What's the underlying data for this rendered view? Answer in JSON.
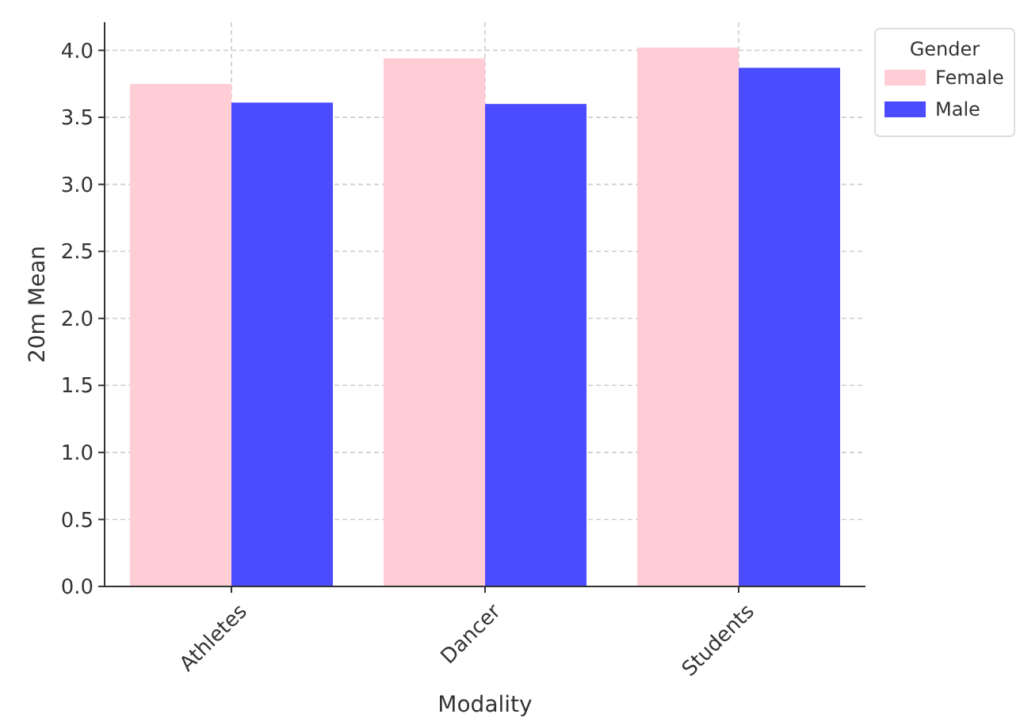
{
  "chart_data": {
    "type": "bar",
    "xlabel": "Modality",
    "ylabel": "20m Mean",
    "legend_title": "Gender",
    "categories": [
      "Athletes",
      "Dancer",
      "Students"
    ],
    "series": [
      {
        "name": "Female",
        "color": "#ffcdd6",
        "values": [
          3.75,
          3.94,
          4.02
        ]
      },
      {
        "name": "Male",
        "color": "#4b4bff",
        "values": [
          3.61,
          3.6,
          3.87
        ]
      }
    ],
    "ylim": [
      0,
      4.21
    ],
    "yticks": [
      {
        "value": 0,
        "label": "0.0"
      },
      {
        "value": 0.5,
        "label": "0.5"
      },
      {
        "value": 1,
        "label": "1.0"
      },
      {
        "value": 1.5,
        "label": "1.5"
      },
      {
        "value": 2,
        "label": "2.0"
      },
      {
        "value": 2.5,
        "label": "2.5"
      },
      {
        "value": 3,
        "label": "3.0"
      },
      {
        "value": 3.5,
        "label": "3.5"
      },
      {
        "value": 4,
        "label": "4.0"
      }
    ],
    "grid": true,
    "legend": "top right"
  }
}
